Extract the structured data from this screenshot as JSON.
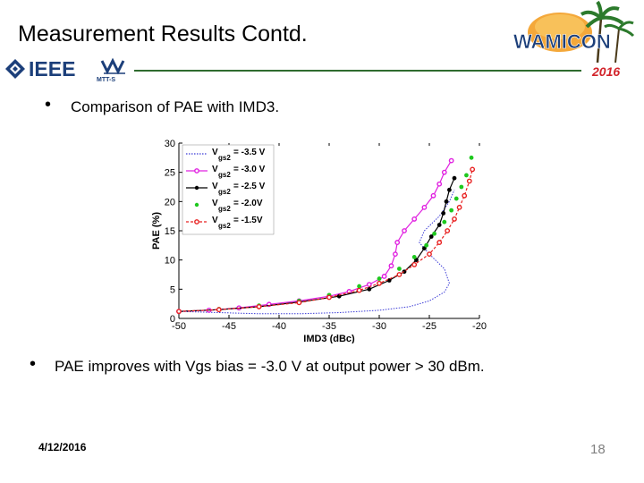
{
  "slide": {
    "title": "Measurement Results Contd.",
    "bullet1": "Comparison of PAE with IMD3.",
    "bullet2": "PAE improves with Vgs bias = -3.0 V at output power > 30 dBm.",
    "bullet_symbol": "•",
    "date": "4/12/2016",
    "page_number": "18"
  },
  "logos": {
    "ieee": "IEEE",
    "mtts": "MTT-S",
    "wamicon": "WAMICON",
    "year": "2016"
  },
  "colors": {
    "header_line": "#2f6b2f",
    "ieee_blue": "#1c3f7a",
    "year_red": "#d2232a",
    "wamicon_orange": "#e8942a"
  },
  "chart_data": {
    "type": "scatter",
    "xlabel": "IMD3 (dBc)",
    "ylabel": "PAE (%)",
    "xlim": [
      -50,
      -20
    ],
    "ylim": [
      0,
      30
    ],
    "xticks": [
      "-50",
      "-45",
      "-40",
      "-35",
      "-30",
      "-25",
      "-20"
    ],
    "yticks": [
      "0",
      "5",
      "10",
      "15",
      "20",
      "25",
      "30"
    ],
    "legend_position": "top-left",
    "series": [
      {
        "name": "Vgs2 = -3.5 V",
        "legend_main": "V",
        "legend_sub": "gs2",
        "legend_value": "= -3.5 V",
        "color": "#3b3bd6",
        "style": "dotted",
        "marker": "none",
        "points": [
          [
            -50,
            1.2
          ],
          [
            -46,
            1.0
          ],
          [
            -42,
            0.8
          ],
          [
            -38,
            0.8
          ],
          [
            -34,
            1.0
          ],
          [
            -30,
            1.4
          ],
          [
            -27,
            2.0
          ],
          [
            -25,
            3.0
          ],
          [
            -23.5,
            4.5
          ],
          [
            -23.0,
            6.0
          ],
          [
            -23.5,
            8.5
          ],
          [
            -25.0,
            11.0
          ],
          [
            -26.0,
            13.0
          ],
          [
            -25.5,
            15.0
          ],
          [
            -24.0,
            17.5
          ],
          [
            -23.0,
            20.0
          ],
          [
            -22.5,
            22.0
          ]
        ]
      },
      {
        "name": "Vgs2 = -3.0 V",
        "legend_main": "V",
        "legend_sub": "gs2",
        "legend_value": "= -3.0 V",
        "color": "#e020e0",
        "style": "solid",
        "marker": "circle",
        "points": [
          [
            -50,
            1.2
          ],
          [
            -47,
            1.4
          ],
          [
            -44,
            1.8
          ],
          [
            -41,
            2.4
          ],
          [
            -38,
            3.0
          ],
          [
            -35,
            3.8
          ],
          [
            -33,
            4.6
          ],
          [
            -31,
            5.8
          ],
          [
            -29.5,
            7.2
          ],
          [
            -28.8,
            9.0
          ],
          [
            -28.4,
            11.0
          ],
          [
            -28.2,
            13.0
          ],
          [
            -27.5,
            15.0
          ],
          [
            -26.5,
            17.0
          ],
          [
            -25.5,
            19.0
          ],
          [
            -24.6,
            21.0
          ],
          [
            -24.0,
            23.0
          ],
          [
            -23.5,
            25.0
          ],
          [
            -22.8,
            27.0
          ]
        ]
      },
      {
        "name": "Vgs2 = -2.5 V",
        "legend_main": "V",
        "legend_sub": "gs2",
        "legend_value": "= -2.5 V",
        "color": "#000000",
        "style": "solid",
        "marker": "dot",
        "points": [
          [
            -50,
            1.2
          ],
          [
            -46,
            1.5
          ],
          [
            -42,
            2.0
          ],
          [
            -38,
            2.8
          ],
          [
            -34,
            3.8
          ],
          [
            -31,
            5.0
          ],
          [
            -29,
            6.5
          ],
          [
            -27.5,
            8.0
          ],
          [
            -26.3,
            10.0
          ],
          [
            -25.5,
            12.0
          ],
          [
            -24.8,
            14.0
          ],
          [
            -24.0,
            16.0
          ],
          [
            -23.6,
            18.0
          ],
          [
            -23.3,
            20.0
          ],
          [
            -23.0,
            22.0
          ],
          [
            -22.5,
            24.0
          ]
        ]
      },
      {
        "name": "Vgs2 = -2.0V",
        "legend_main": "V",
        "legend_sub": "gs2",
        "legend_value": "= -2.0V",
        "color": "#1ec81e",
        "style": "none",
        "marker": "dot",
        "points": [
          [
            -50,
            1.2
          ],
          [
            -46,
            1.6
          ],
          [
            -42,
            2.2
          ],
          [
            -38,
            3.0
          ],
          [
            -35,
            4.0
          ],
          [
            -32,
            5.5
          ],
          [
            -30,
            6.8
          ],
          [
            -28,
            8.5
          ],
          [
            -26.5,
            10.5
          ],
          [
            -25.3,
            12.5
          ],
          [
            -24.5,
            14.5
          ],
          [
            -23.5,
            16.5
          ],
          [
            -22.8,
            18.5
          ],
          [
            -22.3,
            20.5
          ],
          [
            -21.8,
            22.5
          ],
          [
            -21.3,
            24.5
          ],
          [
            -20.8,
            27.5
          ]
        ]
      },
      {
        "name": "Vgs2 = -1.5V",
        "legend_main": "V",
        "legend_sub": "gs2",
        "legend_value": "= -1.5V",
        "color": "#e82020",
        "style": "dashed",
        "marker": "circle",
        "points": [
          [
            -50,
            1.2
          ],
          [
            -46,
            1.5
          ],
          [
            -42,
            2.0
          ],
          [
            -38,
            2.7
          ],
          [
            -35,
            3.6
          ],
          [
            -32,
            4.8
          ],
          [
            -30,
            6.0
          ],
          [
            -28,
            7.5
          ],
          [
            -26.5,
            9.2
          ],
          [
            -25.0,
            11.0
          ],
          [
            -24.0,
            13.0
          ],
          [
            -23.2,
            15.0
          ],
          [
            -22.5,
            17.0
          ],
          [
            -22.0,
            19.0
          ],
          [
            -21.5,
            21.0
          ],
          [
            -21.0,
            23.5
          ],
          [
            -20.7,
            25.5
          ]
        ]
      }
    ]
  }
}
